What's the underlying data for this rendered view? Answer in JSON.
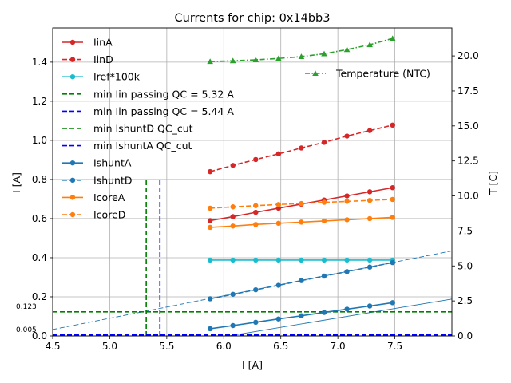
{
  "chart_data": {
    "type": "line",
    "title": "Currents for chip: 0x14bb3",
    "xlabel": "I [A]",
    "ylabel": "I [A]",
    "y2label": "T [C]",
    "xlim": [
      4.5,
      8.0
    ],
    "ylim": [
      0.0,
      1.575
    ],
    "y2lim": [
      0.0,
      22.0
    ],
    "grid": true,
    "legend_position": "upper-left",
    "legend2_position": "upper-right",
    "x": [
      5.88,
      6.08,
      6.28,
      6.48,
      6.68,
      6.88,
      7.08,
      7.28,
      7.48
    ],
    "xticks": [
      "4.5",
      "5.0",
      "5.5",
      "6.0",
      "6.5",
      "7.0",
      "7.5"
    ],
    "xtick_values": [
      4.5,
      5.0,
      5.5,
      6.0,
      6.5,
      7.0,
      7.5
    ],
    "yticks": [
      "0.0",
      "0.2",
      "0.4",
      "0.6",
      "0.8",
      "1.0",
      "1.2",
      "1.4"
    ],
    "ytick_values": [
      0.0,
      0.2,
      0.4,
      0.6,
      0.8,
      1.0,
      1.2,
      1.4
    ],
    "y2ticks": [
      "0.0",
      "2.5",
      "5.0",
      "7.5",
      "10.0",
      "12.5",
      "15.0",
      "17.5",
      "20.0"
    ],
    "y2tick_values": [
      0.0,
      2.5,
      5.0,
      7.5,
      10.0,
      12.5,
      15.0,
      17.5,
      20.0
    ],
    "series": [
      {
        "name": "IinA",
        "color": "#d62728",
        "style": "solid",
        "marker": "circle",
        "axis": "left",
        "values": [
          0.59,
          0.61,
          0.632,
          0.653,
          0.674,
          0.695,
          0.716,
          0.737,
          0.758
        ]
      },
      {
        "name": "IinD",
        "color": "#d62728",
        "style": "dashed",
        "marker": "circle",
        "axis": "left",
        "values": [
          0.84,
          0.872,
          0.902,
          0.931,
          0.961,
          0.99,
          1.022,
          1.05,
          1.078
        ]
      },
      {
        "name": "Iref*100k",
        "color": "#17becf",
        "style": "solid",
        "marker": "circle",
        "axis": "left",
        "values": [
          0.388,
          0.388,
          0.388,
          0.388,
          0.388,
          0.388,
          0.388,
          0.388,
          0.388
        ]
      },
      {
        "name": "IshuntA",
        "color": "#1f77b4",
        "style": "solid",
        "marker": "circle",
        "axis": "left",
        "values": [
          0.037,
          0.053,
          0.07,
          0.087,
          0.103,
          0.12,
          0.137,
          0.153,
          0.17
        ]
      },
      {
        "name": "IshuntD",
        "color": "#1f77b4",
        "style": "dashed",
        "marker": "circle",
        "axis": "left",
        "values": [
          0.19,
          0.213,
          0.236,
          0.259,
          0.283,
          0.306,
          0.329,
          0.352,
          0.375
        ]
      },
      {
        "name": "IcoreA",
        "color": "#ff7f0e",
        "style": "solid",
        "marker": "circle",
        "axis": "left",
        "values": [
          0.555,
          0.562,
          0.57,
          0.576,
          0.582,
          0.588,
          0.594,
          0.6,
          0.606
        ]
      },
      {
        "name": "IcoreD",
        "color": "#ff7f0e",
        "style": "dashed",
        "marker": "circle",
        "axis": "left",
        "values": [
          0.653,
          0.66,
          0.666,
          0.672,
          0.677,
          0.683,
          0.688,
          0.693,
          0.698
        ]
      },
      {
        "name": "Temperature (NTC)",
        "color": "#2ca02c",
        "style": "dashdot",
        "marker": "triangle",
        "axis": "right",
        "values": [
          19.6,
          19.65,
          19.72,
          19.82,
          19.95,
          20.15,
          20.45,
          20.8,
          21.25
        ]
      }
    ],
    "fit_lines": [
      {
        "name": "IshuntA fit",
        "color": "#1f77b4",
        "x": [
          4.5,
          8.0
        ],
        "values": [
          -0.1485,
          0.1885
        ]
      },
      {
        "name": "IshuntD fit",
        "color": "#1f77b4",
        "style": "dashed",
        "x": [
          4.5,
          8.0
        ],
        "values": [
          0.033,
          0.435
        ]
      }
    ],
    "vertical_lines": [
      {
        "name": "min Iin passing QC = 5.32 A",
        "color": "#008000",
        "x": 5.32,
        "ymax": 0.8
      },
      {
        "name": "min Iin passing QC = 5.44 A",
        "color": "#0000ff",
        "x": 5.44,
        "ymax": 0.8
      }
    ],
    "horizontal_lines": [
      {
        "name": "min IshuntD QC_cut",
        "color": "#008000",
        "y": 0.123,
        "label": "0.123"
      },
      {
        "name": "min IshuntA QC_cut",
        "color": "#0000ff",
        "y": 0.005,
        "label": "0.005"
      }
    ],
    "legend": [
      {
        "label": "IinA",
        "color": "#d62728",
        "style": "solid",
        "marker": "circle"
      },
      {
        "label": "IinD",
        "color": "#d62728",
        "style": "dashed",
        "marker": "circle"
      },
      {
        "label": "Iref*100k",
        "color": "#17becf",
        "style": "solid",
        "marker": "circle"
      },
      {
        "label": "min Iin passing QC = 5.32 A",
        "color": "#008000",
        "style": "dashed",
        "marker": "none"
      },
      {
        "label": "min Iin passing QC = 5.44 A",
        "color": "#0000ff",
        "style": "dashed",
        "marker": "none"
      },
      {
        "label": "min IshuntD QC_cut",
        "color": "#008000",
        "style": "dashed",
        "marker": "none"
      },
      {
        "label": "min IshuntA QC_cut",
        "color": "#0000ff",
        "style": "dashed",
        "marker": "none"
      },
      {
        "label": "IshuntA",
        "color": "#1f77b4",
        "style": "solid",
        "marker": "circle"
      },
      {
        "label": "IshuntD",
        "color": "#1f77b4",
        "style": "dashed",
        "marker": "circle"
      },
      {
        "label": "IcoreA",
        "color": "#ff7f0e",
        "style": "solid",
        "marker": "circle"
      },
      {
        "label": "IcoreD",
        "color": "#ff7f0e",
        "style": "dashed",
        "marker": "circle"
      }
    ],
    "legend2": [
      {
        "label": "Temperature (NTC)",
        "color": "#2ca02c",
        "style": "dashdot",
        "marker": "triangle"
      }
    ]
  }
}
